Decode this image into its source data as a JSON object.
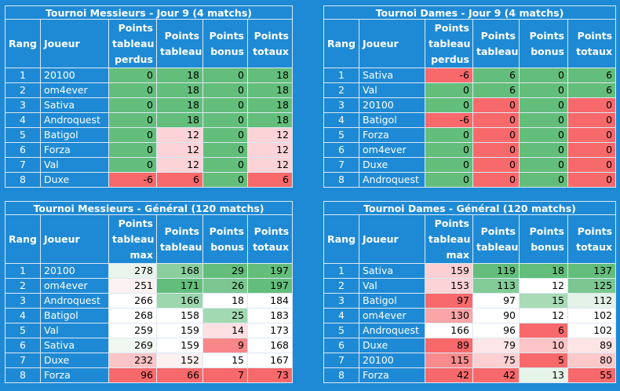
{
  "header_labels": {
    "rank": "Rang",
    "player": "Joueur",
    "lost": [
      "Points",
      "tableau",
      "perdus"
    ],
    "max": [
      "Points",
      "tableau",
      "max"
    ],
    "board": [
      "Points",
      "tableau"
    ],
    "bonus": [
      "Points",
      "bonus"
    ],
    "total": [
      "Points",
      "totaux"
    ]
  },
  "tables": [
    {
      "title": "Tournoi Messieurs - Jour 9 (4 matchs)",
      "first_col": "lost",
      "rows": [
        {
          "rank": "1",
          "player": "20100",
          "c1": "0",
          "c2": "18",
          "c3": "0",
          "c4": "18",
          "bg": [
            "#63be7b",
            "#63be7b",
            "#63be7b",
            "#63be7b"
          ]
        },
        {
          "rank": "2",
          "player": "om4ever",
          "c1": "0",
          "c2": "18",
          "c3": "0",
          "c4": "18",
          "bg": [
            "#63be7b",
            "#63be7b",
            "#63be7b",
            "#63be7b"
          ]
        },
        {
          "rank": "3",
          "player": "Sativa",
          "c1": "0",
          "c2": "18",
          "c3": "0",
          "c4": "18",
          "bg": [
            "#63be7b",
            "#63be7b",
            "#63be7b",
            "#63be7b"
          ]
        },
        {
          "rank": "4",
          "player": "Androquest",
          "c1": "0",
          "c2": "18",
          "c3": "0",
          "c4": "18",
          "bg": [
            "#63be7b",
            "#63be7b",
            "#63be7b",
            "#63be7b"
          ]
        },
        {
          "rank": "5",
          "player": "Batigol",
          "c1": "0",
          "c2": "12",
          "c3": "0",
          "c4": "12",
          "bg": [
            "#63be7b",
            "#fcd3d6",
            "#63be7b",
            "#fcd3d6"
          ]
        },
        {
          "rank": "6",
          "player": "Forza",
          "c1": "0",
          "c2": "12",
          "c3": "0",
          "c4": "12",
          "bg": [
            "#63be7b",
            "#fcd3d6",
            "#63be7b",
            "#fcd3d6"
          ]
        },
        {
          "rank": "7",
          "player": "Val",
          "c1": "0",
          "c2": "12",
          "c3": "0",
          "c4": "12",
          "bg": [
            "#63be7b",
            "#fcd3d6",
            "#63be7b",
            "#fcd3d6"
          ]
        },
        {
          "rank": "8",
          "player": "Duxe",
          "c1": "-6",
          "c2": "6",
          "c3": "0",
          "c4": "6",
          "bg": [
            "#f8696b",
            "#f8696b",
            "#63be7b",
            "#f8696b"
          ]
        }
      ]
    },
    {
      "title": "Tournoi Dames - Jour 9 (4 matchs)",
      "first_col": "lost",
      "rows": [
        {
          "rank": "1",
          "player": "Sativa",
          "c1": "-6",
          "c2": "6",
          "c3": "0",
          "c4": "6",
          "bg": [
            "#f8696b",
            "#63be7b",
            "#63be7b",
            "#63be7b"
          ]
        },
        {
          "rank": "2",
          "player": "Val",
          "c1": "0",
          "c2": "6",
          "c3": "0",
          "c4": "6",
          "bg": [
            "#63be7b",
            "#63be7b",
            "#63be7b",
            "#63be7b"
          ]
        },
        {
          "rank": "3",
          "player": "20100",
          "c1": "0",
          "c2": "0",
          "c3": "0",
          "c4": "0",
          "bg": [
            "#63be7b",
            "#f8696b",
            "#63be7b",
            "#f8696b"
          ]
        },
        {
          "rank": "4",
          "player": "Batigol",
          "c1": "-6",
          "c2": "0",
          "c3": "0",
          "c4": "0",
          "bg": [
            "#f8696b",
            "#f8696b",
            "#63be7b",
            "#f8696b"
          ]
        },
        {
          "rank": "5",
          "player": "Forza",
          "c1": "0",
          "c2": "0",
          "c3": "0",
          "c4": "0",
          "bg": [
            "#63be7b",
            "#f8696b",
            "#63be7b",
            "#f8696b"
          ]
        },
        {
          "rank": "6",
          "player": "om4ever",
          "c1": "0",
          "c2": "0",
          "c3": "0",
          "c4": "0",
          "bg": [
            "#63be7b",
            "#f8696b",
            "#63be7b",
            "#f8696b"
          ]
        },
        {
          "rank": "7",
          "player": "Duxe",
          "c1": "0",
          "c2": "0",
          "c3": "0",
          "c4": "0",
          "bg": [
            "#63be7b",
            "#f8696b",
            "#63be7b",
            "#f8696b"
          ]
        },
        {
          "rank": "8",
          "player": "Androquest",
          "c1": "0",
          "c2": "0",
          "c3": "0",
          "c4": "0",
          "bg": [
            "#63be7b",
            "#f8696b",
            "#63be7b",
            "#f8696b"
          ]
        }
      ]
    },
    {
      "title": "Tournoi Messieurs - Général (120 matchs)",
      "first_col": "max",
      "rows": [
        {
          "rank": "1",
          "player": "20100",
          "c1": "278",
          "c2": "168",
          "c3": "29",
          "c4": "197",
          "bg": [
            "#e8f4ec",
            "#8acf9d",
            "#63be7b",
            "#63be7b"
          ]
        },
        {
          "rank": "2",
          "player": "om4ever",
          "c1": "251",
          "c2": "171",
          "c3": "26",
          "c4": "197",
          "bg": [
            "#fdf2f3",
            "#63be7b",
            "#7cc791",
            "#63be7b"
          ]
        },
        {
          "rank": "3",
          "player": "Androquest",
          "c1": "266",
          "c2": "166",
          "c3": "18",
          "c4": "184",
          "bg": [
            "#ffffff",
            "#9dd7ad",
            "#ffffff",
            "#ffffff"
          ]
        },
        {
          "rank": "4",
          "player": "Batigol",
          "c1": "268",
          "c2": "158",
          "c3": "25",
          "c4": "183",
          "bg": [
            "#ffffff",
            "#ffffff",
            "#a3d9b2",
            "#ffffff"
          ]
        },
        {
          "rank": "5",
          "player": "Val",
          "c1": "259",
          "c2": "159",
          "c3": "14",
          "c4": "173",
          "bg": [
            "#ffffff",
            "#ffffff",
            "#fde0e2",
            "#ffffff"
          ]
        },
        {
          "rank": "6",
          "player": "Sativa",
          "c1": "269",
          "c2": "159",
          "c3": "9",
          "c4": "168",
          "bg": [
            "#f0f8f2",
            "#ffffff",
            "#f8878a",
            "#ffffff"
          ]
        },
        {
          "rank": "7",
          "player": "Duxe",
          "c1": "232",
          "c2": "152",
          "c3": "15",
          "c4": "167",
          "bg": [
            "#fbc4c6",
            "#fdf0f1",
            "#ffffff",
            "#ffffff"
          ]
        },
        {
          "rank": "8",
          "player": "Forza",
          "c1": "96",
          "c2": "66",
          "c3": "7",
          "c4": "73",
          "bg": [
            "#f8696b",
            "#f8696b",
            "#f8696b",
            "#f8696b"
          ]
        }
      ]
    },
    {
      "title": "Tournoi Dames - Général (120 matchs)",
      "first_col": "max",
      "rows": [
        {
          "rank": "1",
          "player": "Sativa",
          "c1": "159",
          "c2": "119",
          "c3": "18",
          "c4": "137",
          "bg": [
            "#fcd0d2",
            "#63be7b",
            "#63be7b",
            "#63be7b"
          ]
        },
        {
          "rank": "2",
          "player": "Val",
          "c1": "153",
          "c2": "113",
          "c3": "12",
          "c4": "125",
          "bg": [
            "#fcd3d6",
            "#83cb97",
            "#ffffff",
            "#7cc791"
          ]
        },
        {
          "rank": "3",
          "player": "Batigol",
          "c1": "97",
          "c2": "97",
          "c3": "15",
          "c4": "112",
          "bg": [
            "#f8696b",
            "#ffffff",
            "#a8dbb6",
            "#e4f2e8"
          ]
        },
        {
          "rank": "4",
          "player": "om4ever",
          "c1": "130",
          "c2": "90",
          "c3": "12",
          "c4": "102",
          "bg": [
            "#faa5a7",
            "#ffffff",
            "#ffffff",
            "#ffffff"
          ]
        },
        {
          "rank": "5",
          "player": "Androquest",
          "c1": "166",
          "c2": "96",
          "c3": "6",
          "c4": "102",
          "bg": [
            "#ffffff",
            "#ffffff",
            "#f8696b",
            "#ffffff"
          ]
        },
        {
          "rank": "6",
          "player": "Duxe",
          "c1": "89",
          "c2": "79",
          "c3": "10",
          "c4": "89",
          "bg": [
            "#f8696b",
            "#fde7e8",
            "#fbc4c6",
            "#fde5e6"
          ]
        },
        {
          "rank": "7",
          "player": "20100",
          "c1": "115",
          "c2": "75",
          "c3": "5",
          "c4": "80",
          "bg": [
            "#f98b8e",
            "#fcd0d2",
            "#f8696b",
            "#fcc8ca"
          ]
        },
        {
          "rank": "8",
          "player": "Forza",
          "c1": "42",
          "c2": "42",
          "c3": "13",
          "c4": "55",
          "bg": [
            "#f8696b",
            "#f8696b",
            "#e6f4ea",
            "#f8696b"
          ]
        }
      ]
    }
  ]
}
